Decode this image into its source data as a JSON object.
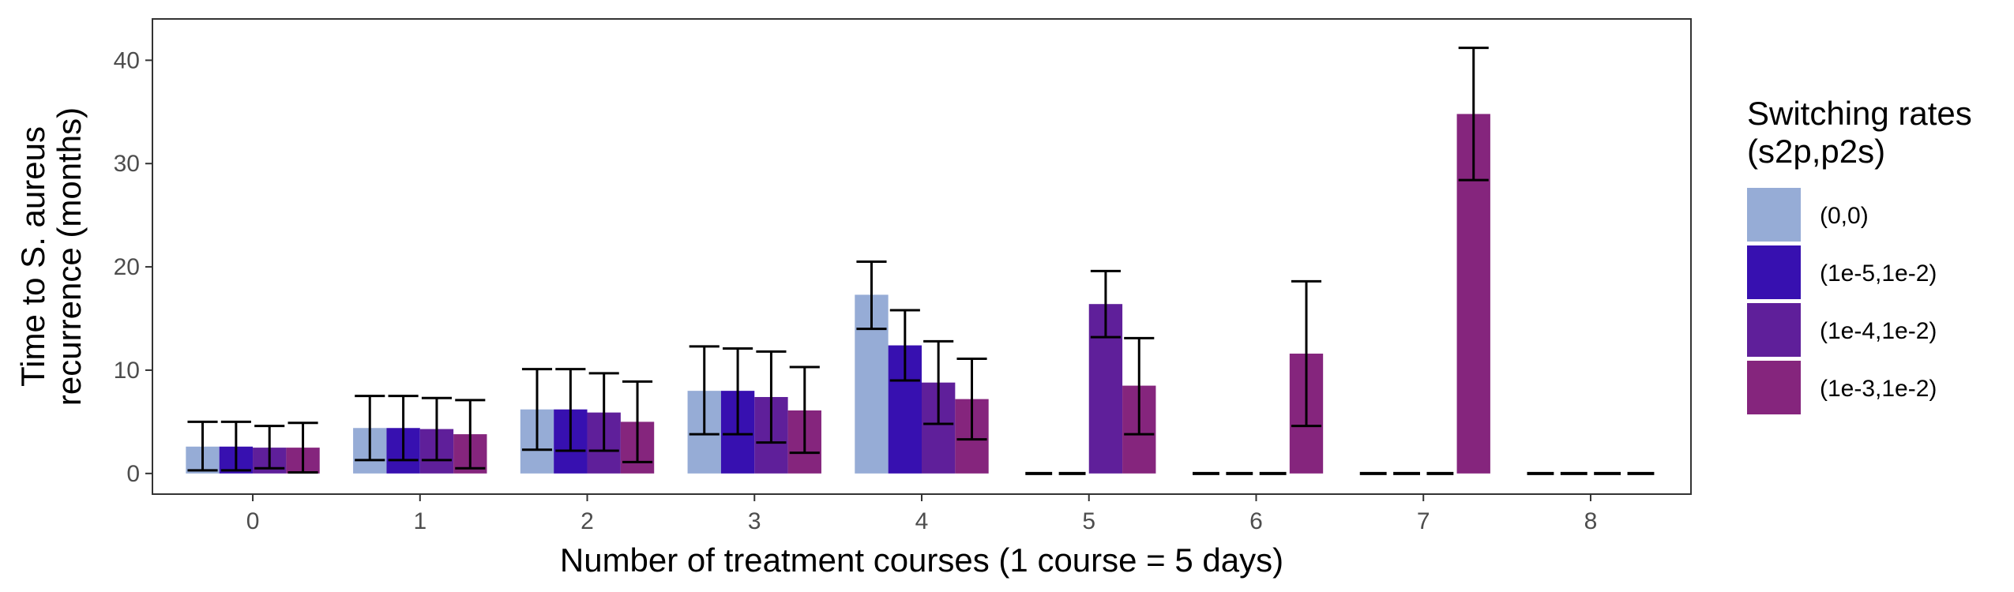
{
  "chart_data": {
    "type": "bar",
    "xlabel": "Number of treatment courses (1 course = 5 days)",
    "ylabel": [
      "Time to S. aureus",
      "recurrence (months)"
    ],
    "categories": [
      "0",
      "1",
      "2",
      "3",
      "4",
      "5",
      "6",
      "7",
      "8"
    ],
    "ylim": [
      -2,
      44
    ],
    "yticks": [
      0,
      10,
      20,
      30,
      40
    ],
    "grid": false,
    "legend": {
      "title": [
        "Switching rates",
        "(s2p,p2s)"
      ],
      "position": "right"
    },
    "series": [
      {
        "name": "(0,0)",
        "color": "#96acd6",
        "values": [
          2.6,
          4.4,
          6.2,
          8.0,
          17.3,
          0,
          0,
          0,
          0
        ],
        "err_low": [
          0.3,
          1.3,
          2.3,
          3.8,
          14.0,
          null,
          null,
          null,
          null
        ],
        "err_high": [
          5.0,
          7.5,
          10.1,
          12.3,
          20.5,
          null,
          null,
          null,
          null
        ]
      },
      {
        "name": "(1e-5,1e-2)",
        "color": "#3710b0",
        "values": [
          2.6,
          4.4,
          6.2,
          8.0,
          12.4,
          0,
          0,
          0,
          0
        ],
        "err_low": [
          0.3,
          1.3,
          2.2,
          3.8,
          9.0,
          null,
          null,
          null,
          null
        ],
        "err_high": [
          5.0,
          7.5,
          10.1,
          12.1,
          15.8,
          null,
          null,
          null,
          null
        ]
      },
      {
        "name": "(1e-4,1e-2)",
        "color": "#5f1f9a",
        "values": [
          2.5,
          4.3,
          5.9,
          7.4,
          8.8,
          16.4,
          0,
          0,
          0
        ],
        "err_low": [
          0.5,
          1.3,
          2.2,
          3.0,
          4.8,
          13.2,
          null,
          null,
          null
        ],
        "err_high": [
          4.6,
          7.3,
          9.7,
          11.8,
          12.8,
          19.6,
          null,
          null,
          null
        ]
      },
      {
        "name": "(1e-3,1e-2)",
        "color": "#85257d",
        "values": [
          2.5,
          3.8,
          5.0,
          6.1,
          7.2,
          8.5,
          11.6,
          34.8,
          0
        ],
        "err_low": [
          0.1,
          0.5,
          1.1,
          2.0,
          3.3,
          3.8,
          4.6,
          28.4,
          null
        ],
        "err_high": [
          4.9,
          7.1,
          8.9,
          10.3,
          11.1,
          13.1,
          18.6,
          41.2,
          null
        ]
      }
    ]
  }
}
